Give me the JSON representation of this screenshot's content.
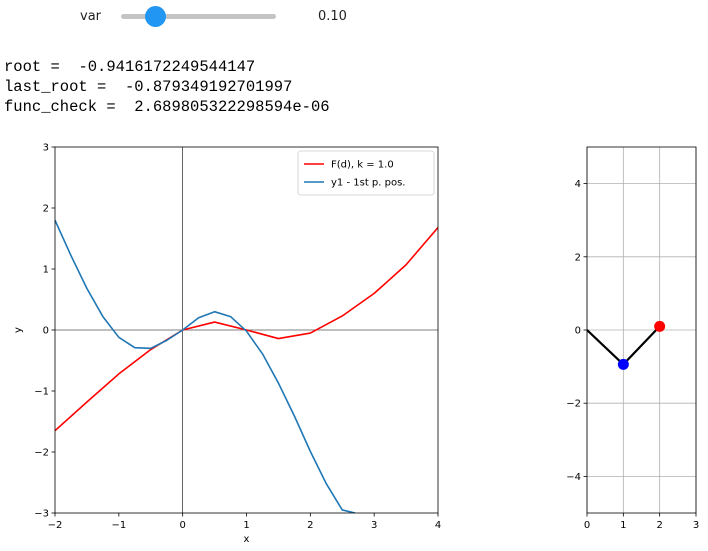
{
  "slider": {
    "label": "var",
    "value": 0.1,
    "min": 0.0,
    "max": 1.0,
    "readout": "0.10",
    "color": "#2196f3"
  },
  "output": {
    "root_label": "root = ",
    "root_value": "-0.9416172249544147",
    "last_root_label": "last_root = ",
    "last_root_value": "-0.879349192701997",
    "func_check_label": "func_check = ",
    "func_check_value": "2.689805322298594e-06"
  },
  "chart_data": [
    {
      "type": "line",
      "title": "",
      "xlabel": "x",
      "ylabel": "y",
      "xlim": [
        -2,
        4
      ],
      "ylim": [
        -3,
        3
      ],
      "xticks": [
        -2,
        -1,
        0,
        1,
        2,
        3,
        4
      ],
      "yticks": [
        -3,
        -2,
        -1,
        0,
        1,
        2,
        3
      ],
      "grid": false,
      "zero_lines": true,
      "legend_position": "top-right",
      "series": [
        {
          "name": "F(d), k = 1.0",
          "color": "#ff0000",
          "x": [
            -2.0,
            -1.5,
            -1.0,
            -0.5,
            0.0,
            0.5,
            1.0,
            1.5,
            2.0,
            2.5,
            3.0,
            3.5,
            4.0
          ],
          "y": [
            -1.65,
            -1.18,
            -0.72,
            -0.32,
            0.0,
            0.13,
            0.0,
            -0.14,
            -0.05,
            0.23,
            0.6,
            1.07,
            1.68
          ]
        },
        {
          "name": "y1 - 1st p. pos.",
          "color": "#1f77b4",
          "x": [
            -2.0,
            -1.75,
            -1.5,
            -1.25,
            -1.0,
            -0.75,
            -0.5,
            -0.25,
            0.0,
            0.25,
            0.5,
            0.75,
            1.0,
            1.25,
            1.5,
            1.75,
            2.0,
            2.25,
            2.5,
            2.7
          ],
          "y": [
            1.8,
            1.22,
            0.68,
            0.22,
            -0.12,
            -0.29,
            -0.3,
            -0.17,
            0.0,
            0.2,
            0.3,
            0.22,
            -0.02,
            -0.39,
            -0.87,
            -1.41,
            -1.99,
            -2.52,
            -2.95,
            -3.0
          ]
        }
      ]
    },
    {
      "type": "line",
      "title": "",
      "xlabel": "",
      "ylabel": "",
      "xlim": [
        0,
        3
      ],
      "ylim": [
        -5,
        5
      ],
      "xticks": [
        0,
        1,
        2,
        3
      ],
      "yticks": [
        -4,
        -2,
        0,
        2,
        4
      ],
      "grid": true,
      "series": [
        {
          "name": "",
          "color": "#000000",
          "x": [
            0,
            1,
            2
          ],
          "y": [
            0,
            -0.94,
            0.1
          ]
        }
      ],
      "points": [
        {
          "x": 1,
          "y": -0.94,
          "color": "#0000ff"
        },
        {
          "x": 2,
          "y": 0.1,
          "color": "#ff0000"
        }
      ]
    }
  ]
}
